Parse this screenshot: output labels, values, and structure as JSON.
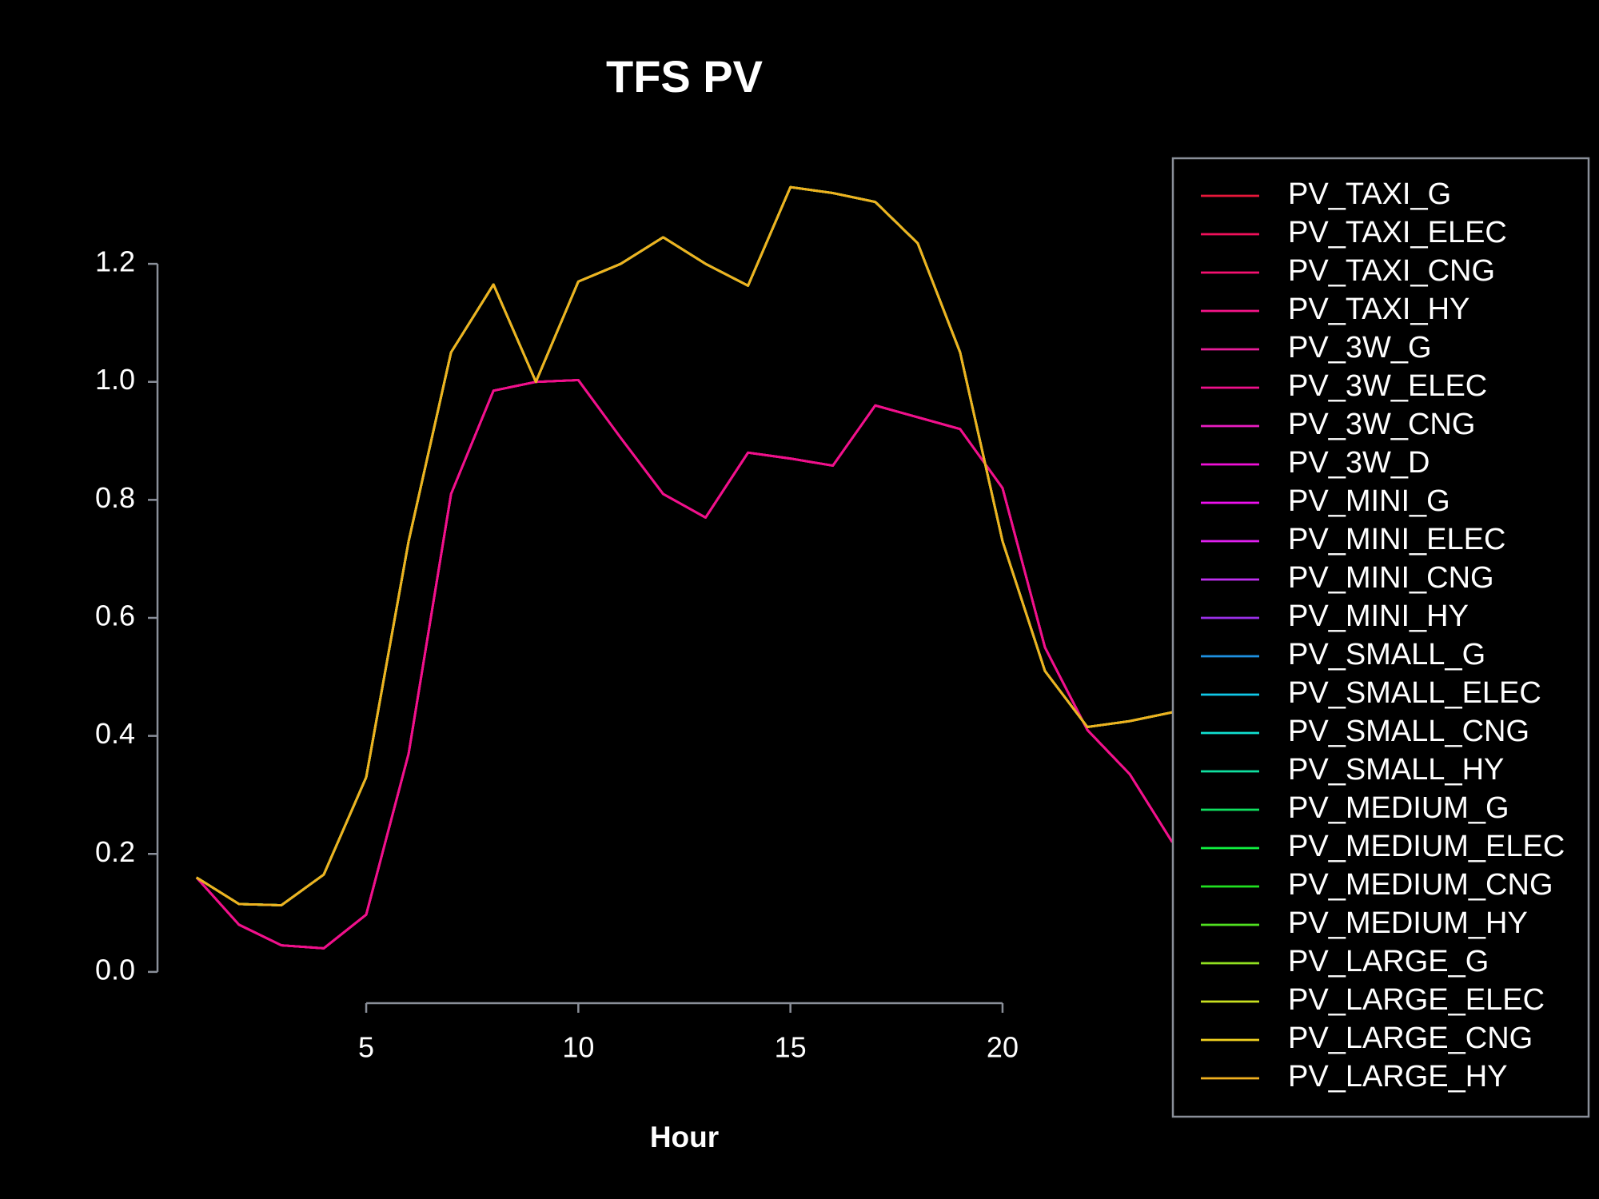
{
  "chart_data": {
    "type": "line",
    "title": "TFS PV",
    "x_label": "Hour",
    "x": [
      1,
      2,
      3,
      4,
      5,
      6,
      7,
      8,
      9,
      10,
      11,
      12,
      13,
      14,
      15,
      16,
      17,
      18,
      19,
      20,
      21,
      22,
      23,
      24
    ],
    "xlim": [
      0.08,
      24.92
    ],
    "xticks": [
      5,
      10,
      15,
      20
    ],
    "ylim": [
      -0.053,
      1.383
    ],
    "yticks": [
      {
        "value": 0,
        "label": "0.0"
      },
      0.2,
      0.4,
      0.6,
      0.8,
      {
        "value": 1,
        "label": "1.0"
      },
      1.2
    ],
    "legend": "right",
    "series": [
      {
        "name": "PV_TAXI_G",
        "color": "#e8173a",
        "values": [
          0.16,
          0.08,
          0.045,
          0.04,
          0.097,
          0.37,
          0.81,
          0.985,
          1.0,
          1.003,
          0.905,
          0.81,
          0.77,
          0.88,
          0.87,
          0.858,
          0.96,
          0.94,
          0.92,
          0.82,
          0.55,
          0.41,
          0.335,
          0.22
        ]
      },
      {
        "name": "PV_TAXI_ELEC",
        "color": "#f0105a",
        "values": [
          0.16,
          0.08,
          0.045,
          0.04,
          0.097,
          0.37,
          0.81,
          0.985,
          1.0,
          1.003,
          0.905,
          0.81,
          0.77,
          0.88,
          0.87,
          0.858,
          0.96,
          0.94,
          0.92,
          0.82,
          0.55,
          0.41,
          0.335,
          0.22
        ]
      },
      {
        "name": "PV_TAXI_CNG",
        "color": "#f51070",
        "values": [
          0.16,
          0.08,
          0.045,
          0.04,
          0.097,
          0.37,
          0.81,
          0.985,
          1.0,
          1.003,
          0.905,
          0.81,
          0.77,
          0.88,
          0.87,
          0.858,
          0.96,
          0.94,
          0.92,
          0.82,
          0.55,
          0.41,
          0.335,
          0.22
        ]
      },
      {
        "name": "PV_TAXI_HY",
        "color": "#f51488",
        "values": [
          0.16,
          0.08,
          0.045,
          0.04,
          0.097,
          0.37,
          0.81,
          0.985,
          1.0,
          1.003,
          0.905,
          0.81,
          0.77,
          0.88,
          0.87,
          0.858,
          0.96,
          0.94,
          0.92,
          0.82,
          0.55,
          0.41,
          0.335,
          0.22
        ]
      },
      {
        "name": "PV_3W_G",
        "color": "#e91e9a",
        "values": [
          0.16,
          0.08,
          0.045,
          0.04,
          0.097,
          0.37,
          0.81,
          0.985,
          1.0,
          1.003,
          0.905,
          0.81,
          0.77,
          0.88,
          0.87,
          0.858,
          0.96,
          0.94,
          0.92,
          0.82,
          0.55,
          0.41,
          0.335,
          0.22
        ]
      },
      {
        "name": "PV_3W_ELEC",
        "color": "#f0108c",
        "values": [
          0.16,
          0.08,
          0.045,
          0.04,
          0.097,
          0.37,
          0.81,
          0.985,
          1.0,
          1.003,
          0.905,
          0.81,
          0.77,
          0.88,
          0.87,
          0.858,
          0.96,
          0.94,
          0.92,
          0.82,
          0.55,
          0.41,
          0.335,
          0.22
        ]
      },
      {
        "name": "PV_3W_CNG",
        "color": "#e81cc0",
        "values": [
          0.16,
          0.115,
          0.113,
          0.165,
          0.33,
          0.73,
          1.05,
          1.165,
          1.0,
          1.17,
          1.2,
          1.245,
          1.2,
          1.163,
          1.33,
          1.32,
          1.305,
          1.235,
          1.05,
          0.73,
          0.51,
          0.415,
          0.425,
          0.44
        ]
      },
      {
        "name": "PV_3W_D",
        "color": "#f010d8",
        "values": [
          0.16,
          0.115,
          0.113,
          0.165,
          0.33,
          0.73,
          1.05,
          1.165,
          1.0,
          1.17,
          1.2,
          1.245,
          1.2,
          1.163,
          1.33,
          1.32,
          1.305,
          1.235,
          1.05,
          0.73,
          0.51,
          0.415,
          0.425,
          0.44
        ]
      },
      {
        "name": "PV_MINI_G",
        "color": "#f010f0",
        "values": [
          0.16,
          0.115,
          0.113,
          0.165,
          0.33,
          0.73,
          1.05,
          1.165,
          1.0,
          1.17,
          1.2,
          1.245,
          1.2,
          1.163,
          1.33,
          1.32,
          1.305,
          1.235,
          1.05,
          0.73,
          0.51,
          0.415,
          0.425,
          0.44
        ]
      },
      {
        "name": "PV_MINI_ELEC",
        "color": "#e020f0",
        "values": [
          0.16,
          0.115,
          0.113,
          0.165,
          0.33,
          0.73,
          1.05,
          1.165,
          1.0,
          1.17,
          1.2,
          1.245,
          1.2,
          1.163,
          1.33,
          1.32,
          1.305,
          1.235,
          1.05,
          0.73,
          0.51,
          0.415,
          0.425,
          0.44
        ]
      },
      {
        "name": "PV_MINI_CNG",
        "color": "#c030f0",
        "values": [
          0.16,
          0.115,
          0.113,
          0.165,
          0.33,
          0.73,
          1.05,
          1.165,
          1.0,
          1.17,
          1.2,
          1.245,
          1.2,
          1.163,
          1.33,
          1.32,
          1.305,
          1.235,
          1.05,
          0.73,
          0.51,
          0.415,
          0.425,
          0.44
        ]
      },
      {
        "name": "PV_MINI_HY",
        "color": "#9a30e8",
        "values": [
          0.16,
          0.115,
          0.113,
          0.165,
          0.33,
          0.73,
          1.05,
          1.165,
          1.0,
          1.17,
          1.2,
          1.245,
          1.2,
          1.163,
          1.33,
          1.32,
          1.305,
          1.235,
          1.05,
          0.73,
          0.51,
          0.415,
          0.425,
          0.44
        ]
      },
      {
        "name": "PV_SMALL_G",
        "color": "#1e90e0",
        "values": [
          0.16,
          0.115,
          0.113,
          0.165,
          0.33,
          0.73,
          1.05,
          1.165,
          1.0,
          1.17,
          1.2,
          1.245,
          1.2,
          1.163,
          1.33,
          1.32,
          1.305,
          1.235,
          1.05,
          0.73,
          0.51,
          0.415,
          0.425,
          0.44
        ]
      },
      {
        "name": "PV_SMALL_ELEC",
        "color": "#10c8e8",
        "values": [
          0.16,
          0.115,
          0.113,
          0.165,
          0.33,
          0.73,
          1.05,
          1.165,
          1.0,
          1.17,
          1.2,
          1.245,
          1.2,
          1.163,
          1.33,
          1.32,
          1.305,
          1.235,
          1.05,
          0.73,
          0.51,
          0.415,
          0.425,
          0.44
        ]
      },
      {
        "name": "PV_SMALL_CNG",
        "color": "#10e0d0",
        "values": [
          0.16,
          0.115,
          0.113,
          0.165,
          0.33,
          0.73,
          1.05,
          1.165,
          1.0,
          1.17,
          1.2,
          1.245,
          1.2,
          1.163,
          1.33,
          1.32,
          1.305,
          1.235,
          1.05,
          0.73,
          0.51,
          0.415,
          0.425,
          0.44
        ]
      },
      {
        "name": "PV_SMALL_HY",
        "color": "#10e0a0",
        "values": [
          0.16,
          0.115,
          0.113,
          0.165,
          0.33,
          0.73,
          1.05,
          1.165,
          1.0,
          1.17,
          1.2,
          1.245,
          1.2,
          1.163,
          1.33,
          1.32,
          1.305,
          1.235,
          1.05,
          0.73,
          0.51,
          0.415,
          0.425,
          0.44
        ]
      },
      {
        "name": "PV_MEDIUM_G",
        "color": "#10e060",
        "values": [
          0.16,
          0.115,
          0.113,
          0.165,
          0.33,
          0.73,
          1.05,
          1.165,
          1.0,
          1.17,
          1.2,
          1.245,
          1.2,
          1.163,
          1.33,
          1.32,
          1.305,
          1.235,
          1.05,
          0.73,
          0.51,
          0.415,
          0.425,
          0.44
        ]
      },
      {
        "name": "PV_MEDIUM_ELEC",
        "color": "#10f040",
        "values": [
          0.16,
          0.115,
          0.113,
          0.165,
          0.33,
          0.73,
          1.05,
          1.165,
          1.0,
          1.17,
          1.2,
          1.245,
          1.2,
          1.163,
          1.33,
          1.32,
          1.305,
          1.235,
          1.05,
          0.73,
          0.51,
          0.415,
          0.425,
          0.44
        ]
      },
      {
        "name": "PV_MEDIUM_CNG",
        "color": "#20e020",
        "values": [
          0.16,
          0.115,
          0.113,
          0.165,
          0.33,
          0.73,
          1.05,
          1.165,
          1.0,
          1.17,
          1.2,
          1.245,
          1.2,
          1.163,
          1.33,
          1.32,
          1.305,
          1.235,
          1.05,
          0.73,
          0.51,
          0.415,
          0.425,
          0.44
        ]
      },
      {
        "name": "PV_MEDIUM_HY",
        "color": "#50e020",
        "values": [
          0.16,
          0.115,
          0.113,
          0.165,
          0.33,
          0.73,
          1.05,
          1.165,
          1.0,
          1.17,
          1.2,
          1.245,
          1.2,
          1.163,
          1.33,
          1.32,
          1.305,
          1.235,
          1.05,
          0.73,
          0.51,
          0.415,
          0.425,
          0.44
        ]
      },
      {
        "name": "PV_LARGE_G",
        "color": "#90e020",
        "values": [
          0.16,
          0.115,
          0.113,
          0.165,
          0.33,
          0.73,
          1.05,
          1.165,
          1.0,
          1.17,
          1.2,
          1.245,
          1.2,
          1.163,
          1.33,
          1.32,
          1.305,
          1.235,
          1.05,
          0.73,
          0.51,
          0.415,
          0.425,
          0.44
        ]
      },
      {
        "name": "PV_LARGE_ELEC",
        "color": "#c8e020",
        "values": [
          0.16,
          0.115,
          0.113,
          0.165,
          0.33,
          0.73,
          1.05,
          1.165,
          1.0,
          1.17,
          1.2,
          1.245,
          1.2,
          1.163,
          1.33,
          1.32,
          1.305,
          1.235,
          1.05,
          0.73,
          0.51,
          0.415,
          0.425,
          0.44
        ]
      },
      {
        "name": "PV_LARGE_CNG",
        "color": "#f0d020",
        "values": [
          0.16,
          0.115,
          0.113,
          0.165,
          0.33,
          0.73,
          1.05,
          1.165,
          1.0,
          1.17,
          1.2,
          1.245,
          1.2,
          1.163,
          1.33,
          1.32,
          1.305,
          1.235,
          1.05,
          0.73,
          0.51,
          0.415,
          0.425,
          0.44
        ]
      },
      {
        "name": "PV_LARGE_HY",
        "color": "#f0b020",
        "values": [
          0.16,
          0.115,
          0.113,
          0.165,
          0.33,
          0.73,
          1.05,
          1.165,
          1.0,
          1.17,
          1.2,
          1.245,
          1.2,
          1.163,
          1.33,
          1.32,
          1.305,
          1.235,
          1.05,
          0.73,
          0.51,
          0.415,
          0.425,
          0.44
        ]
      }
    ]
  }
}
